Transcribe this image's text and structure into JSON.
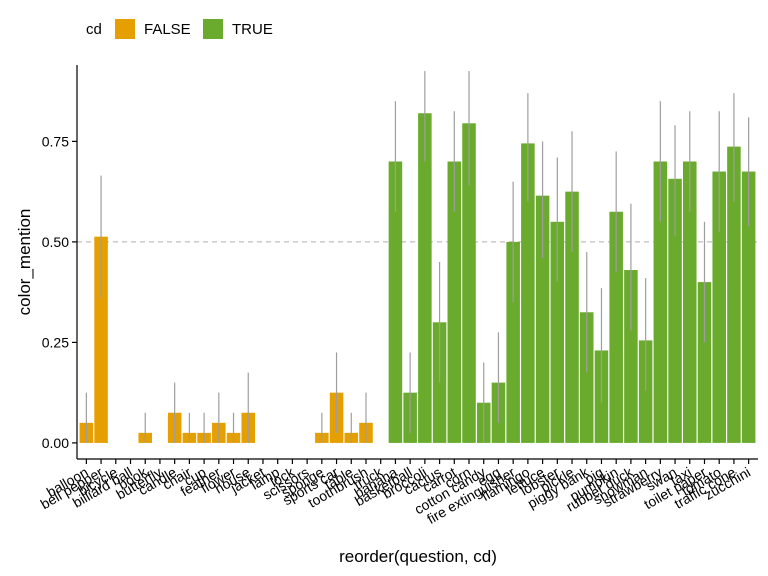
{
  "chart_data": {
    "type": "bar",
    "title": "",
    "xlabel": "reorder(question, cd)",
    "ylabel": "color_mention",
    "ylim": [
      -0.04,
      0.94
    ],
    "yticks": [
      0.0,
      0.25,
      0.5,
      0.75
    ],
    "ytick_labels": [
      "0.00",
      "0.25",
      "0.50",
      "0.75"
    ],
    "reference_line": 0.5,
    "grid": false,
    "legend": {
      "position": "top-left",
      "title": "cd",
      "entries": [
        {
          "label": "FALSE",
          "color": "#E69F00"
        },
        {
          "label": "TRUE",
          "color": "#6AAB2E"
        }
      ]
    },
    "colors": {
      "FALSE": "#E69F00",
      "TRUE": "#6AAB2E",
      "errorbar": "#9E9E9E",
      "refline": "#BDBDBD"
    },
    "bars": [
      {
        "category": "balloon",
        "group": "FALSE",
        "value": 0.05,
        "low": 0.0,
        "high": 0.125
      },
      {
        "category": "bell pepper",
        "group": "FALSE",
        "value": 0.513,
        "low": 0.36,
        "high": 0.665
      },
      {
        "category": "bicycle",
        "group": "FALSE",
        "value": 0.0
      },
      {
        "category": "billiard ball",
        "group": "FALSE",
        "value": 0.0
      },
      {
        "category": "book",
        "group": "FALSE",
        "value": 0.025,
        "low": 0.0,
        "high": 0.075
      },
      {
        "category": "butterfly",
        "group": "FALSE",
        "value": 0.0
      },
      {
        "category": "candle",
        "group": "FALSE",
        "value": 0.075,
        "low": 0.0,
        "high": 0.15
      },
      {
        "category": "chair",
        "group": "FALSE",
        "value": 0.025,
        "low": 0.0,
        "high": 0.075
      },
      {
        "category": "cup",
        "group": "FALSE",
        "value": 0.025,
        "low": 0.0,
        "high": 0.075
      },
      {
        "category": "feather",
        "group": "FALSE",
        "value": 0.05,
        "low": 0.0,
        "high": 0.125
      },
      {
        "category": "flower",
        "group": "FALSE",
        "value": 0.025,
        "low": 0.0,
        "high": 0.075
      },
      {
        "category": "house",
        "group": "FALSE",
        "value": 0.075,
        "low": 0.0,
        "high": 0.175
      },
      {
        "category": "jacket",
        "group": "FALSE",
        "value": 0.0
      },
      {
        "category": "lamp",
        "group": "FALSE",
        "value": 0.0
      },
      {
        "category": "lock",
        "group": "FALSE",
        "value": 0.0
      },
      {
        "category": "scissors",
        "group": "FALSE",
        "value": 0.0
      },
      {
        "category": "sponge",
        "group": "FALSE",
        "value": 0.025,
        "low": 0.0,
        "high": 0.075
      },
      {
        "category": "sports car",
        "group": "FALSE",
        "value": 0.125,
        "low": 0.025,
        "high": 0.225
      },
      {
        "category": "table",
        "group": "FALSE",
        "value": 0.025,
        "low": 0.0,
        "high": 0.075
      },
      {
        "category": "toothbrush",
        "group": "FALSE",
        "value": 0.05,
        "low": 0.0,
        "high": 0.125
      },
      {
        "category": "truck",
        "group": "FALSE",
        "value": 0.0
      },
      {
        "category": "banana",
        "group": "TRUE",
        "value": 0.7,
        "low": 0.575,
        "high": 0.85
      },
      {
        "category": "basketball",
        "group": "TRUE",
        "value": 0.125,
        "low": 0.025,
        "high": 0.225
      },
      {
        "category": "broccoli",
        "group": "TRUE",
        "value": 0.82,
        "low": 0.7,
        "high": 0.925
      },
      {
        "category": "cactus",
        "group": "TRUE",
        "value": 0.3,
        "low": 0.15,
        "high": 0.45
      },
      {
        "category": "carrot",
        "group": "TRUE",
        "value": 0.7,
        "low": 0.575,
        "high": 0.825
      },
      {
        "category": "corn",
        "group": "TRUE",
        "value": 0.795,
        "low": 0.64,
        "high": 0.925
      },
      {
        "category": "cotton candy",
        "group": "TRUE",
        "value": 0.1,
        "low": 0.0,
        "high": 0.2
      },
      {
        "category": "egg",
        "group": "TRUE",
        "value": 0.15,
        "low": 0.05,
        "high": 0.275
      },
      {
        "category": "fire extinguisher",
        "group": "TRUE",
        "value": 0.5,
        "low": 0.35,
        "high": 0.65
      },
      {
        "category": "flamingo",
        "group": "TRUE",
        "value": 0.745,
        "low": 0.6,
        "high": 0.87
      },
      {
        "category": "lettuce",
        "group": "TRUE",
        "value": 0.615,
        "low": 0.46,
        "high": 0.75
      },
      {
        "category": "lobster",
        "group": "TRUE",
        "value": 0.55,
        "low": 0.4,
        "high": 0.71
      },
      {
        "category": "pickle",
        "group": "TRUE",
        "value": 0.625,
        "low": 0.475,
        "high": 0.775
      },
      {
        "category": "piggy bank",
        "group": "TRUE",
        "value": 0.325,
        "low": 0.175,
        "high": 0.475
      },
      {
        "category": "pig",
        "group": "TRUE",
        "value": 0.23,
        "low": 0.1,
        "high": 0.385
      },
      {
        "category": "pumpkin",
        "group": "TRUE",
        "value": 0.575,
        "low": 0.425,
        "high": 0.725
      },
      {
        "category": "rubber duck",
        "group": "TRUE",
        "value": 0.43,
        "low": 0.28,
        "high": 0.595
      },
      {
        "category": "snowman",
        "group": "TRUE",
        "value": 0.255,
        "low": 0.13,
        "high": 0.41
      },
      {
        "category": "strawberry",
        "group": "TRUE",
        "value": 0.7,
        "low": 0.55,
        "high": 0.85
      },
      {
        "category": "swan",
        "group": "TRUE",
        "value": 0.657,
        "low": 0.515,
        "high": 0.79
      },
      {
        "category": "taxi",
        "group": "TRUE",
        "value": 0.7,
        "low": 0.575,
        "high": 0.825
      },
      {
        "category": "toilet paper",
        "group": "TRUE",
        "value": 0.4,
        "low": 0.25,
        "high": 0.55
      },
      {
        "category": "tomato",
        "group": "TRUE",
        "value": 0.675,
        "low": 0.525,
        "high": 0.825
      },
      {
        "category": "traffic cone",
        "group": "TRUE",
        "value": 0.737,
        "low": 0.6,
        "high": 0.87
      },
      {
        "category": "zucchini",
        "group": "TRUE",
        "value": 0.675,
        "low": 0.54,
        "high": 0.81
      }
    ]
  }
}
